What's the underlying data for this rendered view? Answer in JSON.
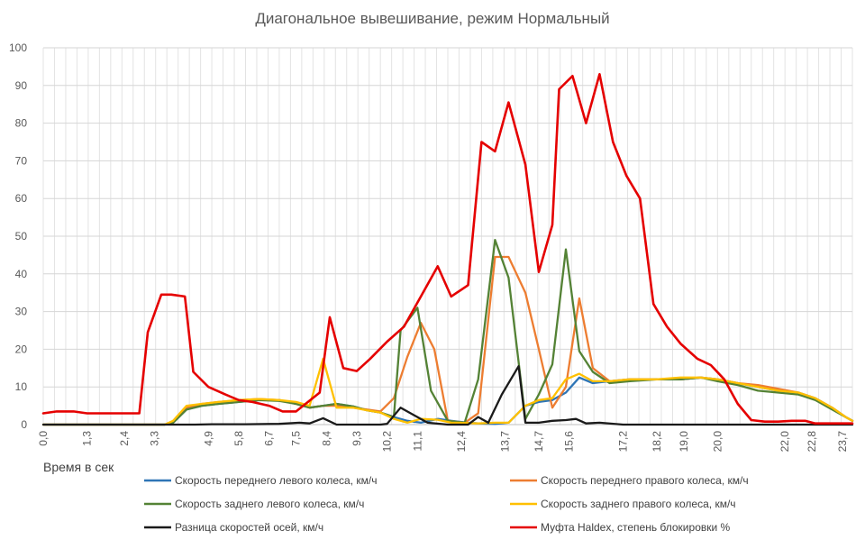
{
  "chart_data": {
    "type": "line",
    "title": "Диагональное вывешивание, режим Нормальный",
    "xlabel": "Время в сек",
    "ylabel": "",
    "ylim": [
      0,
      100
    ],
    "yticks": [
      0,
      10,
      20,
      30,
      40,
      50,
      60,
      70,
      80,
      90,
      100
    ],
    "xlim": [
      0,
      24.0
    ],
    "x_tick_labels": [
      "0,0",
      "1,3",
      "2,4",
      "3,3",
      "4,9",
      "5,8",
      "6,7",
      "7,5",
      "8,4",
      "9,3",
      "10,2",
      "11,1",
      "12,4",
      "13,7",
      "14,7",
      "15,6",
      "17,2",
      "18,2",
      "19,0",
      "20,0",
      "22,0",
      "22,8",
      "23,7"
    ],
    "x_tick_positions": [
      0,
      1.3,
      2.4,
      3.3,
      4.9,
      5.8,
      6.7,
      7.5,
      8.4,
      9.3,
      10.2,
      11.1,
      12.4,
      13.7,
      14.7,
      15.6,
      17.2,
      18.2,
      19.0,
      20.0,
      22.0,
      22.8,
      23.7
    ],
    "grid": true,
    "legend_position": "bottom",
    "series": [
      {
        "name": "Скорость переднего левого колеса, км/ч",
        "color": "#2E75B6",
        "points": [
          [
            0,
            0
          ],
          [
            3.6,
            0
          ],
          [
            3.85,
            0.5
          ],
          [
            4.25,
            4
          ],
          [
            4.7,
            5
          ],
          [
            5.2,
            5.5
          ],
          [
            5.8,
            6
          ],
          [
            6.4,
            6.5
          ],
          [
            7.0,
            6.5
          ],
          [
            7.5,
            5.5
          ],
          [
            7.9,
            4.5
          ],
          [
            8.3,
            5
          ],
          [
            8.7,
            5.5
          ],
          [
            9.2,
            4.8
          ],
          [
            9.6,
            3.8
          ],
          [
            10.0,
            3.2
          ],
          [
            10.4,
            2
          ],
          [
            10.8,
            1
          ],
          [
            11.2,
            0.5
          ],
          [
            11.7,
            1.5
          ],
          [
            12.1,
            1
          ],
          [
            12.6,
            0.5
          ],
          [
            12.9,
            0.3
          ],
          [
            13.4,
            0.2
          ],
          [
            13.8,
            0.5
          ],
          [
            14.3,
            5
          ],
          [
            14.7,
            6
          ],
          [
            15.1,
            6.5
          ],
          [
            15.5,
            8.5
          ],
          [
            15.9,
            12.5
          ],
          [
            16.3,
            11
          ],
          [
            16.8,
            11.5
          ],
          [
            17.4,
            12
          ],
          [
            18.2,
            12
          ],
          [
            18.9,
            12
          ],
          [
            19.5,
            12.5
          ],
          [
            20.0,
            12
          ],
          [
            20.6,
            11
          ],
          [
            21.2,
            10
          ],
          [
            21.8,
            9
          ],
          [
            22.4,
            8.5
          ],
          [
            22.9,
            7
          ],
          [
            23.4,
            4.5
          ],
          [
            23.8,
            2
          ],
          [
            24.0,
            1
          ]
        ]
      },
      {
        "name": "Скорость переднего правого колеса, км/ч",
        "color": "#ED7D31",
        "points": [
          [
            0,
            0
          ],
          [
            3.6,
            0
          ],
          [
            3.85,
            0.5
          ],
          [
            4.25,
            4.5
          ],
          [
            4.7,
            5.5
          ],
          [
            5.2,
            6
          ],
          [
            5.8,
            6.5
          ],
          [
            6.4,
            6.8
          ],
          [
            7.0,
            6.5
          ],
          [
            7.5,
            5.5
          ],
          [
            7.9,
            4.5
          ],
          [
            8.3,
            5
          ],
          [
            8.7,
            5
          ],
          [
            9.2,
            4.5
          ],
          [
            9.6,
            4
          ],
          [
            10.0,
            3.5
          ],
          [
            10.4,
            7
          ],
          [
            10.8,
            18
          ],
          [
            11.2,
            27
          ],
          [
            11.6,
            20
          ],
          [
            12.0,
            1
          ],
          [
            12.5,
            0.5
          ],
          [
            12.9,
            3
          ],
          [
            13.4,
            44.5
          ],
          [
            13.8,
            44.5
          ],
          [
            14.3,
            35
          ],
          [
            14.7,
            20
          ],
          [
            15.1,
            4.5
          ],
          [
            15.5,
            10
          ],
          [
            15.9,
            33.5
          ],
          [
            16.3,
            15
          ],
          [
            16.8,
            11.5
          ],
          [
            17.4,
            12
          ],
          [
            18.2,
            12
          ],
          [
            18.9,
            12
          ],
          [
            19.5,
            12.5
          ],
          [
            20.0,
            12
          ],
          [
            20.6,
            11
          ],
          [
            21.2,
            10.5
          ],
          [
            21.8,
            9.5
          ],
          [
            22.4,
            8.5
          ],
          [
            22.9,
            7
          ],
          [
            23.4,
            4.5
          ],
          [
            23.8,
            2
          ],
          [
            24.0,
            1
          ]
        ]
      },
      {
        "name": "Скорость заднего левого колеса, км/ч",
        "color": "#548235",
        "points": [
          [
            0,
            0
          ],
          [
            3.6,
            0
          ],
          [
            3.85,
            0.5
          ],
          [
            4.25,
            4
          ],
          [
            4.7,
            5
          ],
          [
            5.2,
            5.5
          ],
          [
            5.8,
            6
          ],
          [
            6.4,
            6.5
          ],
          [
            7.0,
            6.3
          ],
          [
            7.5,
            5.5
          ],
          [
            7.9,
            4.5
          ],
          [
            8.3,
            5
          ],
          [
            8.7,
            5.5
          ],
          [
            9.2,
            4.8
          ],
          [
            9.6,
            3.8
          ],
          [
            10.0,
            3.2
          ],
          [
            10.4,
            2
          ],
          [
            10.6,
            25
          ],
          [
            11.1,
            31
          ],
          [
            11.5,
            9
          ],
          [
            12.0,
            1
          ],
          [
            12.5,
            0.5
          ],
          [
            12.9,
            12
          ],
          [
            13.4,
            49
          ],
          [
            13.8,
            39
          ],
          [
            14.3,
            1.5
          ],
          [
            14.7,
            8
          ],
          [
            15.1,
            16
          ],
          [
            15.5,
            46.5
          ],
          [
            15.9,
            19.5
          ],
          [
            16.3,
            14
          ],
          [
            16.8,
            11
          ],
          [
            17.4,
            11.5
          ],
          [
            18.2,
            12
          ],
          [
            18.9,
            12
          ],
          [
            19.5,
            12.5
          ],
          [
            20.0,
            11.5
          ],
          [
            20.6,
            10.5
          ],
          [
            21.2,
            9
          ],
          [
            21.8,
            8.5
          ],
          [
            22.4,
            8
          ],
          [
            22.9,
            6.5
          ],
          [
            23.4,
            4
          ],
          [
            23.8,
            2
          ],
          [
            24.0,
            1
          ]
        ]
      },
      {
        "name": "Скорость заднего правого колеса, км/ч",
        "color": "#FFC000",
        "points": [
          [
            0,
            0
          ],
          [
            3.6,
            0
          ],
          [
            3.85,
            1
          ],
          [
            4.25,
            5
          ],
          [
            4.7,
            5.5
          ],
          [
            5.2,
            6
          ],
          [
            5.8,
            6.5
          ],
          [
            6.4,
            6.8
          ],
          [
            7.0,
            6.5
          ],
          [
            7.5,
            6
          ],
          [
            7.9,
            5
          ],
          [
            8.3,
            17.5
          ],
          [
            8.7,
            4.5
          ],
          [
            9.2,
            4.5
          ],
          [
            9.6,
            3.8
          ],
          [
            10.0,
            3.2
          ],
          [
            10.4,
            1.5
          ],
          [
            10.8,
            0.5
          ],
          [
            11.2,
            1.5
          ],
          [
            11.7,
            1.3
          ],
          [
            12.1,
            0.5
          ],
          [
            12.6,
            0.4
          ],
          [
            12.9,
            0.3
          ],
          [
            13.4,
            0.5
          ],
          [
            13.8,
            0.5
          ],
          [
            14.3,
            5
          ],
          [
            14.7,
            6.5
          ],
          [
            15.1,
            7
          ],
          [
            15.5,
            12
          ],
          [
            15.9,
            13.5
          ],
          [
            16.3,
            11.5
          ],
          [
            16.8,
            11.5
          ],
          [
            17.4,
            12
          ],
          [
            18.2,
            12
          ],
          [
            18.9,
            12.5
          ],
          [
            19.5,
            12.5
          ],
          [
            20.0,
            12
          ],
          [
            20.6,
            11
          ],
          [
            21.2,
            10
          ],
          [
            21.8,
            9
          ],
          [
            22.4,
            8.5
          ],
          [
            22.9,
            7
          ],
          [
            23.4,
            4.5
          ],
          [
            23.8,
            2
          ],
          [
            24.0,
            1
          ]
        ]
      },
      {
        "name": "Разница скоростей осей, км/ч",
        "color": "#1A1A1A",
        "points": [
          [
            0,
            0
          ],
          [
            4.5,
            0
          ],
          [
            5.0,
            0.1
          ],
          [
            6.0,
            0.1
          ],
          [
            7.0,
            0.2
          ],
          [
            7.6,
            0.5
          ],
          [
            7.9,
            0.3
          ],
          [
            8.3,
            1.7
          ],
          [
            8.7,
            0
          ],
          [
            9.5,
            0
          ],
          [
            10.0,
            0
          ],
          [
            10.2,
            0.2
          ],
          [
            10.6,
            4.5
          ],
          [
            11.0,
            2.5
          ],
          [
            11.4,
            0.5
          ],
          [
            12.0,
            0
          ],
          [
            12.6,
            0
          ],
          [
            12.9,
            2
          ],
          [
            13.2,
            0.5
          ],
          [
            13.6,
            8
          ],
          [
            14.1,
            15.5
          ],
          [
            14.3,
            0.5
          ],
          [
            14.7,
            0.5
          ],
          [
            15.1,
            1
          ],
          [
            15.5,
            1.2
          ],
          [
            15.8,
            1.5
          ],
          [
            16.1,
            0.3
          ],
          [
            16.5,
            0.5
          ],
          [
            17.2,
            0
          ],
          [
            18.5,
            0
          ],
          [
            24.0,
            0
          ]
        ]
      },
      {
        "name": "Муфта Haldex, степень блокировки %",
        "color": "#E50000",
        "points": [
          [
            0,
            3
          ],
          [
            0.4,
            3.5
          ],
          [
            0.9,
            3.5
          ],
          [
            1.3,
            3
          ],
          [
            2.4,
            3
          ],
          [
            2.85,
            3
          ],
          [
            3.1,
            24.5
          ],
          [
            3.5,
            34.5
          ],
          [
            3.8,
            34.5
          ],
          [
            4.2,
            34
          ],
          [
            4.45,
            14
          ],
          [
            4.9,
            10
          ],
          [
            5.4,
            8
          ],
          [
            5.8,
            6.5
          ],
          [
            6.2,
            6
          ],
          [
            6.7,
            5
          ],
          [
            7.1,
            3.5
          ],
          [
            7.5,
            3.5
          ],
          [
            8.2,
            8.5
          ],
          [
            8.5,
            28.5
          ],
          [
            8.9,
            15
          ],
          [
            9.3,
            14.2
          ],
          [
            9.7,
            17.5
          ],
          [
            10.2,
            22
          ],
          [
            10.7,
            26
          ],
          [
            11.2,
            34
          ],
          [
            11.7,
            42
          ],
          [
            12.1,
            34
          ],
          [
            12.6,
            37
          ],
          [
            13.0,
            75
          ],
          [
            13.4,
            72.5
          ],
          [
            13.8,
            85.5
          ],
          [
            14.3,
            69
          ],
          [
            14.7,
            40.5
          ],
          [
            15.1,
            53
          ],
          [
            15.3,
            89
          ],
          [
            15.7,
            92.5
          ],
          [
            16.1,
            80
          ],
          [
            16.5,
            93
          ],
          [
            16.9,
            75
          ],
          [
            17.3,
            66
          ],
          [
            17.7,
            60
          ],
          [
            18.1,
            32
          ],
          [
            18.5,
            26
          ],
          [
            18.9,
            21.5
          ],
          [
            19.4,
            17.5
          ],
          [
            19.8,
            15.8
          ],
          [
            20.2,
            12
          ],
          [
            20.6,
            5.5
          ],
          [
            21.0,
            1.2
          ],
          [
            21.4,
            0.8
          ],
          [
            21.8,
            0.8
          ],
          [
            22.2,
            1
          ],
          [
            22.6,
            1
          ],
          [
            22.9,
            0.3
          ],
          [
            23.5,
            0.3
          ],
          [
            24.0,
            0.3
          ]
        ]
      }
    ]
  }
}
